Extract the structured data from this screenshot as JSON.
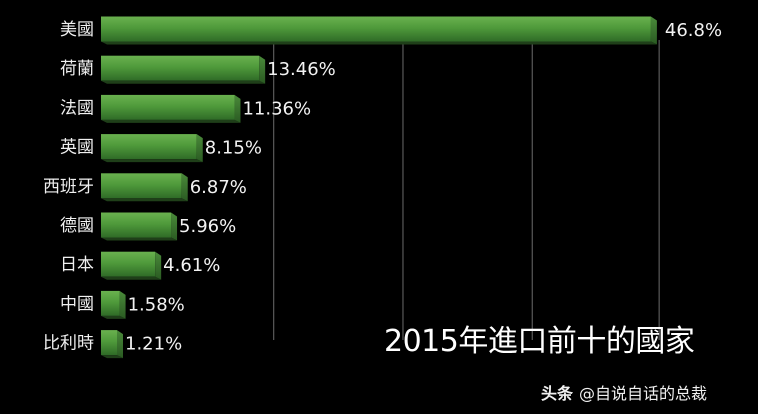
{
  "chart_data": {
    "type": "bar",
    "orientation": "horizontal",
    "title": "2015年進口前十的國家",
    "categories": [
      "美國",
      "荷蘭",
      "法國",
      "英國",
      "西班牙",
      "德國",
      "日本",
      "中國",
      "比利時"
    ],
    "values": [
      46.8,
      13.46,
      11.36,
      8.15,
      6.87,
      5.96,
      4.61,
      1.58,
      1.21
    ],
    "value_labels": [
      "46.8%",
      "13.46%",
      "11.36%",
      "8.15%",
      "6.87%",
      "5.96%",
      "4.61%",
      "1.58%",
      "1.21%"
    ],
    "xlim": [
      0,
      48
    ],
    "grid": true,
    "legend": "none",
    "xlabel": "",
    "ylabel": ""
  },
  "colors": {
    "background": "#000000",
    "bar_top": "#6ab14f",
    "bar_bottom": "#2f6b27",
    "bar_end": "#2a5a22",
    "gridline": "#9a9a9a",
    "text": "#f0f0f0"
  },
  "watermark": {
    "brand": "头条",
    "handle": "@自说自话的总裁"
  }
}
